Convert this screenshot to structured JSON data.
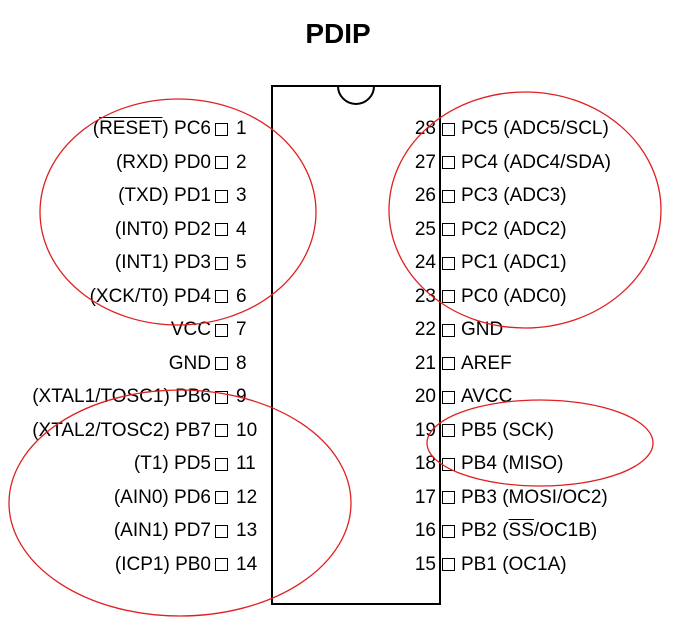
{
  "title": "PDIP",
  "pins_left": [
    {
      "number": "1",
      "pre": "(",
      "overline": "RESET",
      "post": ") PC6"
    },
    {
      "number": "2",
      "label": "(RXD) PD0"
    },
    {
      "number": "3",
      "label": "(TXD) PD1"
    },
    {
      "number": "4",
      "label": "(INT0) PD2"
    },
    {
      "number": "5",
      "label": "(INT1) PD3"
    },
    {
      "number": "6",
      "label": "(XCK/T0) PD4"
    },
    {
      "number": "7",
      "label": "VCC"
    },
    {
      "number": "8",
      "label": "GND"
    },
    {
      "number": "9",
      "label": "(XTAL1/TOSC1) PB6"
    },
    {
      "number": "10",
      "label": "(XTAL2/TOSC2) PB7"
    },
    {
      "number": "11",
      "label": "(T1) PD5"
    },
    {
      "number": "12",
      "label": "(AIN0) PD6"
    },
    {
      "number": "13",
      "label": "(AIN1) PD7"
    },
    {
      "number": "14",
      "label": "(ICP1) PB0"
    }
  ],
  "pins_right": [
    {
      "number": "28",
      "label": "PC5 (ADC5/SCL)"
    },
    {
      "number": "27",
      "label": "PC4 (ADC4/SDA)"
    },
    {
      "number": "26",
      "label": "PC3 (ADC3)"
    },
    {
      "number": "25",
      "label": "PC2 (ADC2)"
    },
    {
      "number": "24",
      "label": "PC1 (ADC1)"
    },
    {
      "number": "23",
      "label": "PC0 (ADC0)"
    },
    {
      "number": "22",
      "label": "GND"
    },
    {
      "number": "21",
      "label": "AREF"
    },
    {
      "number": "20",
      "label": "AVCC"
    },
    {
      "number": "19",
      "label": "PB5 (SCK)"
    },
    {
      "number": "18",
      "label": "PB4 (MISO)"
    },
    {
      "number": "17",
      "label": "PB3 (MOSI/OC2)"
    },
    {
      "number": "16",
      "pre": "PB2 (",
      "overline": "SS",
      "post": "/OC1B)"
    },
    {
      "number": "15",
      "label": "PB1 (OC1A)"
    }
  ],
  "colors": {
    "annotation": "#e02020",
    "ink": "#000000"
  }
}
